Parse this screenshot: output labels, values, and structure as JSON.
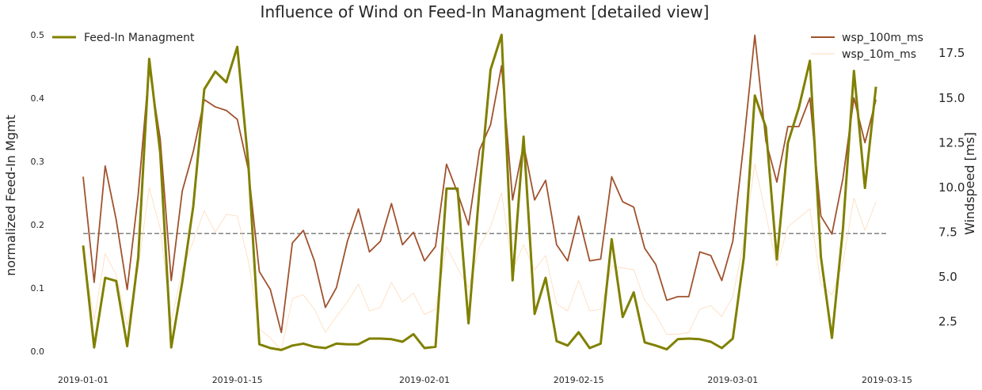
{
  "chart_data": {
    "type": "line",
    "title": "Influence of Wind on Feed-In Managment [detailed view]",
    "x": [
      "2019-01-01",
      "2019-01-02",
      "2019-01-03",
      "2019-01-04",
      "2019-01-05",
      "2019-01-06",
      "2019-01-07",
      "2019-01-08",
      "2019-01-09",
      "2019-01-10",
      "2019-01-11",
      "2019-01-12",
      "2019-01-13",
      "2019-01-14",
      "2019-01-15",
      "2019-01-16",
      "2019-01-17",
      "2019-01-18",
      "2019-01-19",
      "2019-01-20",
      "2019-01-21",
      "2019-01-22",
      "2019-01-23",
      "2019-01-24",
      "2019-01-25",
      "2019-01-26",
      "2019-01-27",
      "2019-01-28",
      "2019-01-29",
      "2019-01-30",
      "2019-01-31",
      "2019-02-01",
      "2019-02-02",
      "2019-02-03",
      "2019-02-04",
      "2019-02-05",
      "2019-02-06",
      "2019-02-07",
      "2019-02-08",
      "2019-02-09",
      "2019-02-10",
      "2019-02-11",
      "2019-02-12",
      "2019-02-13",
      "2019-02-14",
      "2019-02-15",
      "2019-02-16",
      "2019-02-17",
      "2019-02-18",
      "2019-02-19",
      "2019-02-20",
      "2019-02-21",
      "2019-02-22",
      "2019-02-23",
      "2019-02-24",
      "2019-02-25",
      "2019-02-26",
      "2019-02-27",
      "2019-02-28",
      "2019-03-01",
      "2019-03-02",
      "2019-03-03",
      "2019-03-04",
      "2019-03-05",
      "2019-03-06",
      "2019-03-07",
      "2019-03-08",
      "2019-03-09",
      "2019-03-10",
      "2019-03-11",
      "2019-03-12",
      "2019-03-13",
      "2019-03-14",
      "2019-03-15"
    ],
    "xticks": [
      "2019-01-01",
      "2019-01-15",
      "2019-02-01",
      "2019-02-15",
      "2019-03-01",
      "2019-03-15"
    ],
    "y_left": {
      "label": "normalized Feed-In Mgmt",
      "ylim": [
        -0.01,
        0.505
      ],
      "ticks": [
        "0.0",
        "0.1",
        "0.2",
        "0.3",
        "0.4",
        "0.5"
      ]
    },
    "y_right": {
      "label": "Windspeed [ms]",
      "ylim": [
        0.5,
        18.7
      ],
      "ticks": [
        "2.5",
        "5.0",
        "7.5",
        "10.0",
        "12.5",
        "15.0",
        "17.5"
      ]
    },
    "series": [
      {
        "name": "Feed-In Managment",
        "axis": "left",
        "color": "#808000",
        "values": [
          0.167,
          0.006,
          0.116,
          0.111,
          0.008,
          0.148,
          0.462,
          0.313,
          0.006,
          0.109,
          0.229,
          0.414,
          0.442,
          0.425,
          0.481,
          0.297,
          0.011,
          0.005,
          0.002,
          0.009,
          0.012,
          0.007,
          0.005,
          0.012,
          0.011,
          0.011,
          0.02,
          0.02,
          0.019,
          0.015,
          0.027,
          0.005,
          0.007,
          0.257,
          0.257,
          0.044,
          0.257,
          0.445,
          0.5,
          0.112,
          0.339,
          0.059,
          0.116,
          0.016,
          0.009,
          0.03,
          0.005,
          0.012,
          0.177,
          0.054,
          0.093,
          0.014,
          0.009,
          0.003,
          0.019,
          0.02,
          0.019,
          0.015,
          0.005,
          0.02,
          0.148,
          0.404,
          0.354,
          0.145,
          0.329,
          0.385,
          0.459,
          0.149,
          0.021,
          0.193,
          0.443,
          0.258,
          0.418,
          null
        ]
      },
      {
        "name": "wsp_100m_ms",
        "axis": "right",
        "color": "#a0522d",
        "values": [
          10.6,
          4.7,
          11.2,
          8.2,
          4.3,
          9.6,
          16.7,
          12.7,
          4.8,
          9.8,
          12.0,
          14.9,
          14.5,
          14.3,
          13.8,
          11.0,
          5.3,
          4.3,
          1.9,
          6.9,
          7.6,
          5.9,
          3.3,
          4.4,
          7.0,
          8.8,
          6.4,
          7.0,
          9.1,
          6.8,
          7.5,
          5.9,
          6.7,
          11.3,
          9.7,
          7.9,
          12.1,
          13.5,
          16.8,
          9.3,
          12.4,
          9.3,
          10.4,
          6.8,
          5.9,
          8.4,
          5.9,
          6.0,
          10.6,
          9.2,
          8.9,
          6.6,
          5.7,
          3.7,
          3.9,
          3.9,
          6.4,
          6.2,
          4.8,
          7.0,
          12.5,
          18.5,
          12.6,
          10.3,
          13.4,
          13.4,
          15.0,
          8.4,
          7.4,
          10.5,
          15.0,
          12.5,
          14.9,
          null
        ]
      },
      {
        "name": "wsp_10m_ms",
        "axis": "right",
        "color": "#ffdab9",
        "values": [
          6.3,
          2.6,
          6.3,
          5.1,
          2.3,
          5.5,
          10.0,
          7.7,
          2.5,
          5.4,
          7.0,
          8.7,
          7.5,
          8.5,
          8.4,
          5.9,
          2.1,
          1.6,
          0.9,
          3.8,
          4.0,
          3.2,
          1.9,
          2.8,
          3.6,
          4.6,
          3.1,
          3.3,
          4.7,
          3.6,
          4.1,
          2.9,
          3.2,
          6.7,
          5.5,
          4.4,
          6.7,
          7.8,
          9.7,
          5.4,
          6.8,
          5.4,
          6.2,
          3.5,
          3.1,
          4.8,
          3.1,
          3.2,
          5.6,
          5.5,
          5.4,
          3.7,
          2.9,
          1.8,
          1.8,
          1.9,
          3.2,
          3.4,
          2.8,
          3.9,
          7.0,
          11.3,
          8.5,
          5.6,
          7.8,
          8.3,
          8.8,
          4.6,
          4.0,
          5.8,
          9.4,
          7.6,
          9.2,
          null
        ]
      }
    ],
    "reference_line": {
      "axis": "left",
      "value": 0.186,
      "style": "dashed",
      "color": "#808080"
    },
    "legend_left": {
      "placement": "upper-left",
      "entries": [
        "Feed-In Managment"
      ]
    },
    "legend_right": {
      "placement": "upper-right",
      "entries": [
        "wsp_100m_ms",
        "wsp_10m_ms"
      ]
    },
    "grid": false
  }
}
